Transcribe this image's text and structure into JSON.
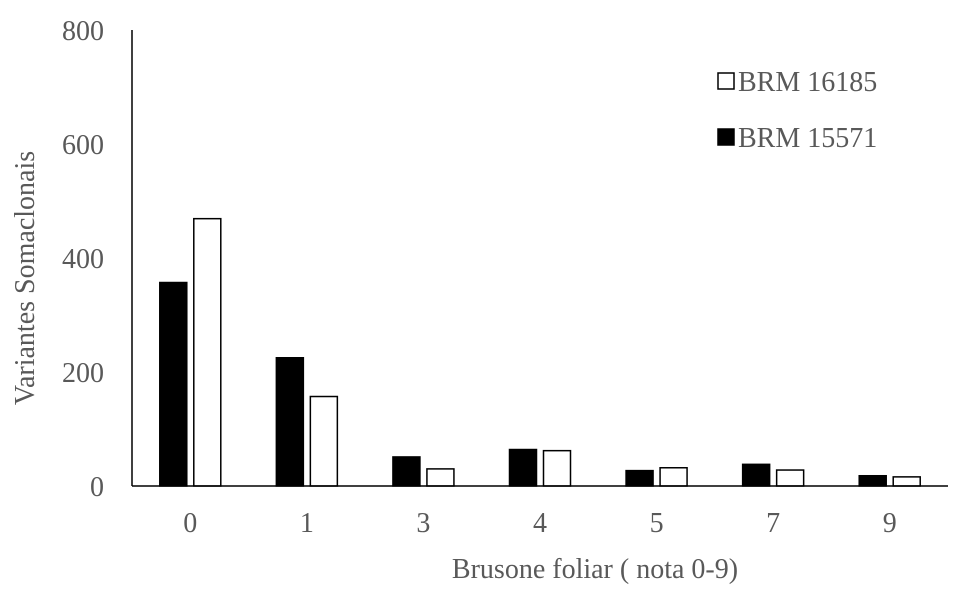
{
  "chart_data": {
    "type": "bar",
    "title": "",
    "xlabel": "Brusone foliar ( nota 0-9)",
    "ylabel": "Variantes Somaclonais",
    "categories": [
      "0",
      "1",
      "3",
      "4",
      "5",
      "7",
      "9"
    ],
    "ylim": [
      0,
      800
    ],
    "yticks": [
      "0",
      "200",
      "400",
      "600",
      "800"
    ],
    "grid": false,
    "legend_position": "top-right",
    "series": [
      {
        "name": "BRM 15571",
        "values": [
          357,
          225,
          51,
          64,
          27,
          38,
          18
        ],
        "fill": "#000000",
        "stroke": "#000000"
      },
      {
        "name": "BRM 16185",
        "values": [
          469,
          157,
          30,
          62,
          32,
          28,
          16
        ],
        "fill": "#ffffff",
        "stroke": "#000000"
      }
    ],
    "legend": [
      {
        "name": "BRM 16185",
        "fill": "#ffffff",
        "stroke": "#000000"
      },
      {
        "name": "BRM 15571",
        "fill": "#000000",
        "stroke": "#000000"
      }
    ],
    "colors": {
      "axis": "#000000",
      "text": "#595959"
    }
  }
}
